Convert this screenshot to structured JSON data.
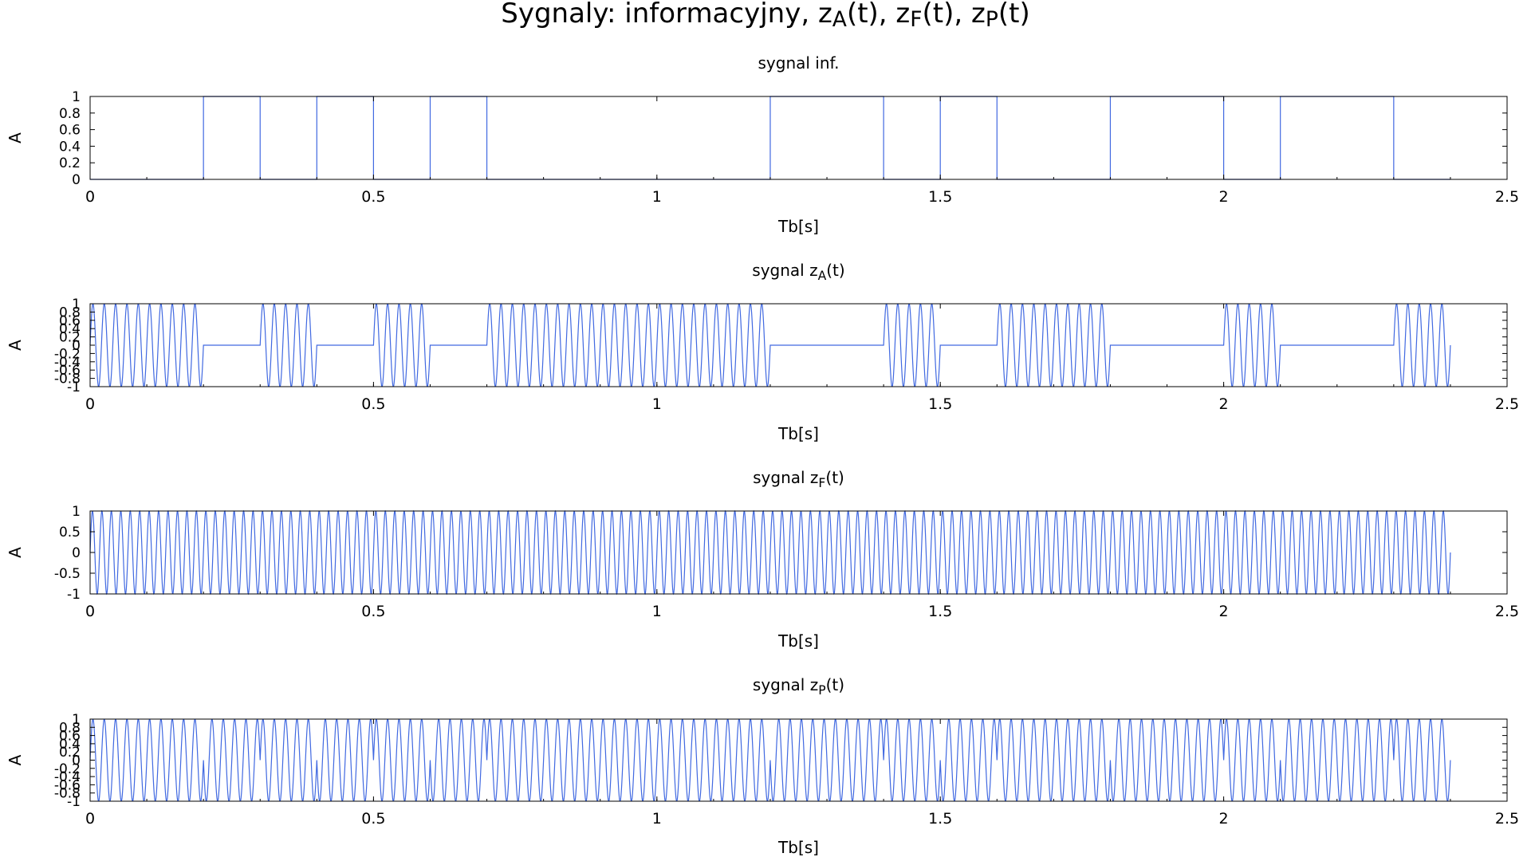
{
  "figure": {
    "title_main": "Sygnaly: informacyjny, z",
    "title_parts": [
      {
        "t": "Sygnaly: informacyjny, z",
        "sub": false
      },
      {
        "t": "A",
        "sub": true
      },
      {
        "t": "(t), z",
        "sub": false
      },
      {
        "t": "F",
        "sub": true
      },
      {
        "t": "(t), z",
        "sub": false
      },
      {
        "t": "P",
        "sub": true
      },
      {
        "t": "(t)",
        "sub": false
      }
    ]
  },
  "colors": {
    "line": "#4169e1",
    "axes": "#000000",
    "background": "#ffffff"
  },
  "chart_data": [
    {
      "type": "line",
      "title_parts": [
        {
          "t": "sygnal inf.",
          "sub": false
        }
      ],
      "xlabel": "Tb[s]",
      "ylabel": "A",
      "xlim": [
        0,
        2.5
      ],
      "ylim": [
        0,
        1
      ],
      "xticks": [
        "0",
        "0.5",
        "1",
        "1.5",
        "2",
        "2.5"
      ],
      "yticks": [
        "0",
        "0.2",
        "0.4",
        "0.6",
        "0.8",
        "1"
      ],
      "grid": false,
      "series": [
        {
          "kind": "bits",
          "bit_period": 0.1,
          "bits": [
            0,
            0,
            1,
            0,
            1,
            0,
            1,
            0,
            0,
            0,
            0,
            0,
            1,
            1,
            0,
            1,
            0,
            0,
            1,
            1,
            0,
            1,
            1,
            0
          ],
          "x_end": 2.4
        }
      ]
    },
    {
      "type": "line",
      "title_parts": [
        {
          "t": "sygnal z",
          "sub": false
        },
        {
          "t": "A",
          "sub": true
        },
        {
          "t": "(t)",
          "sub": false
        }
      ],
      "xlabel": "Tb[s]",
      "ylabel": "A",
      "xlim": [
        0,
        2.5
      ],
      "ylim": [
        -1,
        1
      ],
      "xticks": [
        "0",
        "0.5",
        "1",
        "1.5",
        "2",
        "2.5"
      ],
      "yticks": [
        "-1",
        "-0.8",
        "-0.6",
        "-0.4",
        "-0.2",
        "0",
        "0.2",
        "0.4",
        "0.6",
        "0.8",
        "1"
      ],
      "grid": false,
      "series": [
        {
          "kind": "ask",
          "carrier_cycles_per_bit": 5,
          "bit_period": 0.1,
          "bits": [
            1,
            1,
            0,
            1,
            0,
            1,
            0,
            1,
            1,
            1,
            1,
            1,
            0,
            0,
            1,
            0,
            1,
            1,
            0,
            0,
            1,
            0,
            0,
            1
          ],
          "x_end": 2.4
        }
      ]
    },
    {
      "type": "line",
      "title_parts": [
        {
          "t": "sygnal z",
          "sub": false
        },
        {
          "t": "F",
          "sub": true
        },
        {
          "t": "(t)",
          "sub": false
        }
      ],
      "xlabel": "Tb[s]",
      "ylabel": "A",
      "xlim": [
        0,
        2.5
      ],
      "ylim": [
        -1,
        1
      ],
      "xticks": [
        "0",
        "0.5",
        "1",
        "1.5",
        "2",
        "2.5"
      ],
      "yticks": [
        "-1",
        "-0.5",
        "0",
        "0.5",
        "1"
      ],
      "grid": false,
      "series": [
        {
          "kind": "fsk",
          "carrier_cycles_per_bit": 5,
          "bit_period": 0.1,
          "x_end": 2.4
        }
      ]
    },
    {
      "type": "line",
      "title_parts": [
        {
          "t": "sygnal z",
          "sub": false
        },
        {
          "t": "P",
          "sub": true
        },
        {
          "t": "(t)",
          "sub": false
        }
      ],
      "xlabel": "Tb[s]",
      "ylabel": "A",
      "xlim": [
        0,
        2.5
      ],
      "ylim": [
        -1,
        1
      ],
      "xticks": [
        "0",
        "0.5",
        "1",
        "1.5",
        "2",
        "2.5"
      ],
      "yticks": [
        "-1",
        "-0.8",
        "-0.6",
        "-0.4",
        "-0.2",
        "0",
        "0.2",
        "0.4",
        "0.6",
        "0.8",
        "1"
      ],
      "grid": false,
      "series": [
        {
          "kind": "psk",
          "carrier_cycles_per_bit": 5,
          "bit_period": 0.1,
          "bits": [
            1,
            1,
            0,
            1,
            0,
            1,
            0,
            1,
            1,
            1,
            1,
            1,
            0,
            0,
            1,
            0,
            1,
            1,
            0,
            0,
            1,
            0,
            0,
            1
          ],
          "x_end": 2.4
        }
      ]
    }
  ]
}
